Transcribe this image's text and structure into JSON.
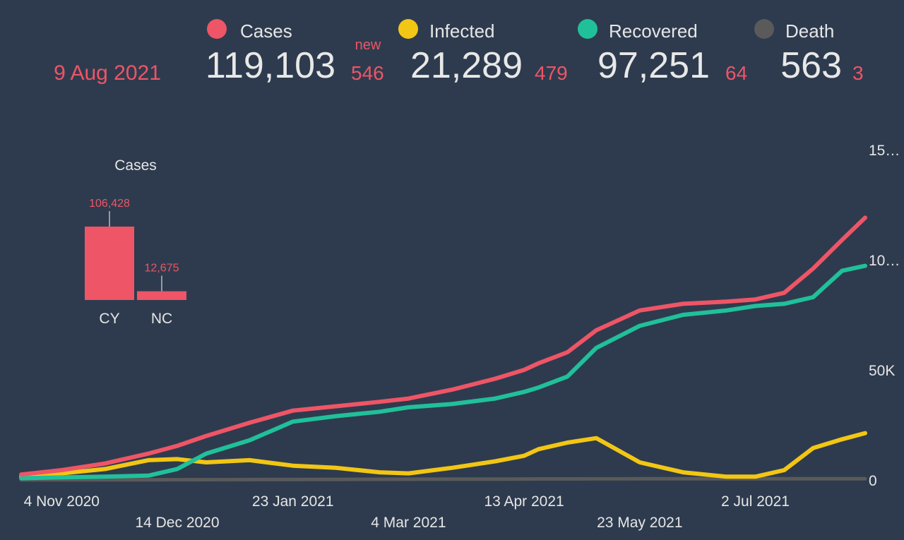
{
  "header": {
    "date": "9 Aug 2021",
    "new_label": "new",
    "stats": [
      {
        "label": "Cases",
        "color": "#ee5566",
        "total": "119,103",
        "new": "546"
      },
      {
        "label": "Infected",
        "color": "#f2c614",
        "total": "21,289",
        "new": "479"
      },
      {
        "label": "Recovered",
        "color": "#20c09a",
        "total": "97,251",
        "new": "64"
      },
      {
        "label": "Death",
        "color": "#5a5a5a",
        "total": "563",
        "new": "3"
      }
    ]
  },
  "chart_data": [
    {
      "type": "line",
      "x_tick_labels": [
        "4 Nov 2020",
        "14 Dec 2020",
        "23 Jan 2021",
        "4 Mar 2021",
        "13 Apr 2021",
        "23 May 2021",
        "2 Jul 2021"
      ],
      "y_tick_labels": [
        "0",
        "50K",
        "10…",
        "15…"
      ],
      "ylim": [
        0,
        150000
      ],
      "grid": false,
      "x": [
        "2020-10-21",
        "2020-11-04",
        "2020-11-19",
        "2020-12-04",
        "2020-12-14",
        "2020-12-24",
        "2021-01-08",
        "2021-01-23",
        "2021-02-07",
        "2021-02-22",
        "2021-03-04",
        "2021-03-19",
        "2021-04-03",
        "2021-04-13",
        "2021-04-18",
        "2021-04-28",
        "2021-05-08",
        "2021-05-23",
        "2021-06-07",
        "2021-06-22",
        "2021-07-02",
        "2021-07-12",
        "2021-07-22",
        "2021-08-01",
        "2021-08-09"
      ],
      "series": [
        {
          "name": "Cases",
          "color": "#ee5566",
          "values": [
            2500,
            4500,
            7500,
            12000,
            15500,
            20000,
            26000,
            31500,
            33500,
            35500,
            37000,
            41000,
            46000,
            50000,
            53000,
            58000,
            68000,
            77000,
            80000,
            81000,
            82000,
            85000,
            96000,
            109000,
            119103
          ]
        },
        {
          "name": "Infected",
          "color": "#f2c614",
          "values": [
            1500,
            3000,
            5000,
            9000,
            9500,
            8000,
            9000,
            6500,
            5500,
            3500,
            3000,
            5500,
            8500,
            11000,
            14000,
            17000,
            19000,
            8000,
            3500,
            1500,
            1500,
            4500,
            14500,
            18500,
            21289
          ]
        },
        {
          "name": "Recovered",
          "color": "#20c09a",
          "values": [
            800,
            1200,
            1500,
            2000,
            5000,
            12000,
            18000,
            26500,
            29000,
            31000,
            33000,
            34500,
            37000,
            40000,
            42000,
            47000,
            60000,
            70000,
            75000,
            77000,
            79000,
            80000,
            83000,
            95000,
            97251
          ]
        },
        {
          "name": "Death",
          "color": "#5a5a5a",
          "values": [
            50,
            60,
            80,
            100,
            120,
            150,
            200,
            260,
            300,
            330,
            350,
            380,
            420,
            450,
            470,
            490,
            510,
            530,
            540,
            548,
            552,
            556,
            558,
            561,
            563
          ]
        }
      ]
    },
    {
      "type": "bar",
      "title": "Cases",
      "categories": [
        "CY",
        "NC"
      ],
      "values": [
        106428,
        12675
      ],
      "value_labels": [
        "106,428",
        "12,675"
      ],
      "color": "#ee5566"
    }
  ]
}
